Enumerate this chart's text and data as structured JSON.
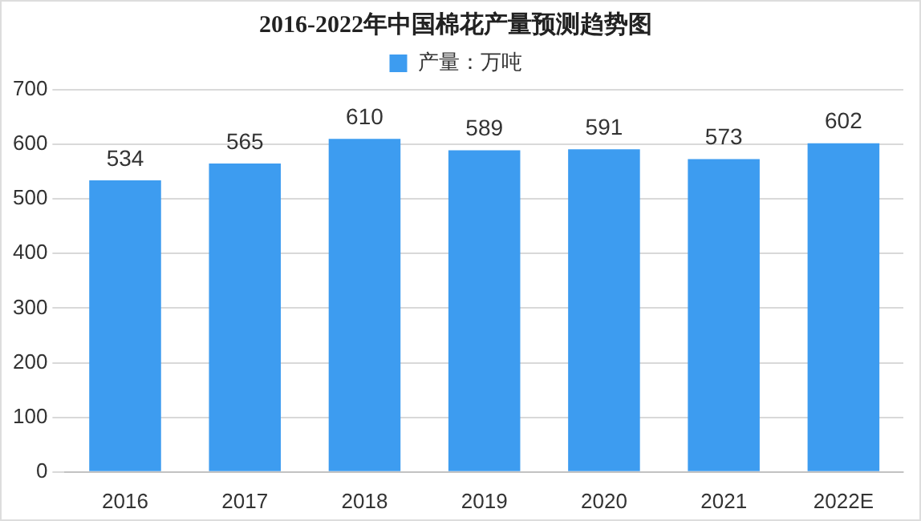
{
  "chart_data": {
    "type": "bar",
    "title": "2016-2022年中国棉花产量预测趋势图",
    "categories": [
      "2016",
      "2017",
      "2018",
      "2019",
      "2020",
      "2021",
      "2022E"
    ],
    "series": [
      {
        "name": "产量：万吨",
        "color": "#3d9cf0",
        "values": [
          534,
          565,
          610,
          589,
          591,
          573,
          602
        ]
      }
    ],
    "ylim": [
      0,
      700
    ],
    "yticks": [
      0,
      100,
      200,
      300,
      400,
      500,
      600,
      700
    ],
    "grid": "y",
    "legend": "top",
    "data_labels": true
  }
}
